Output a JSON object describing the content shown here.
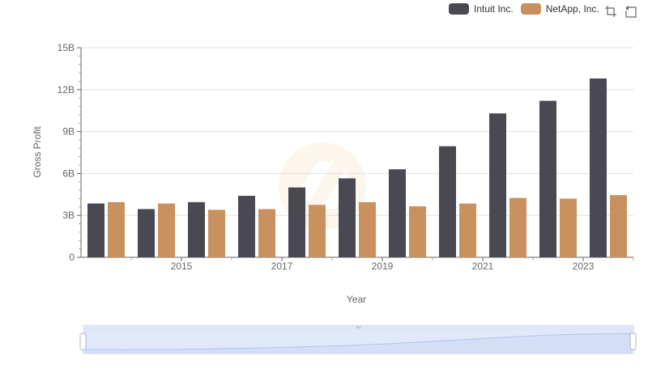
{
  "chart_data": {
    "type": "bar",
    "xlabel": "Year",
    "ylabel": "Gross Profit",
    "categories": [
      "2014",
      "2015",
      "2016",
      "2017",
      "2018",
      "2019",
      "2020",
      "2021",
      "2022",
      "2023",
      "2024"
    ],
    "x_tick_labels": [
      "2015",
      "2017",
      "2019",
      "2021",
      "2023"
    ],
    "y_ticks": [
      0,
      3,
      6,
      9,
      12,
      15
    ],
    "y_tick_labels": [
      "0",
      "3B",
      "6B",
      "9B",
      "12B",
      "15B"
    ],
    "ylim": [
      0,
      15
    ],
    "y_unit": "B",
    "grid": true,
    "legend_position": "top-right",
    "series": [
      {
        "name": "Intuit Inc.",
        "color": "#4a4953",
        "values": [
          3.85,
          3.45,
          3.95,
          4.4,
          5.0,
          5.65,
          6.3,
          7.95,
          10.3,
          11.2,
          12.8
        ]
      },
      {
        "name": "NetApp, Inc.",
        "color": "#c9915e",
        "values": [
          3.95,
          3.85,
          3.4,
          3.45,
          3.75,
          3.95,
          3.65,
          3.85,
          4.25,
          4.2,
          4.45
        ]
      }
    ]
  },
  "toolbox": {
    "zoom_icon": "zoom-icon",
    "restore_icon": "restore-icon"
  },
  "datazoom": {
    "start_percent": 0,
    "end_percent": 100,
    "handle_color": "#dfe6f6",
    "fill_color": "#d2ddf7"
  },
  "watermark_icon": "logo-watermark-icon"
}
